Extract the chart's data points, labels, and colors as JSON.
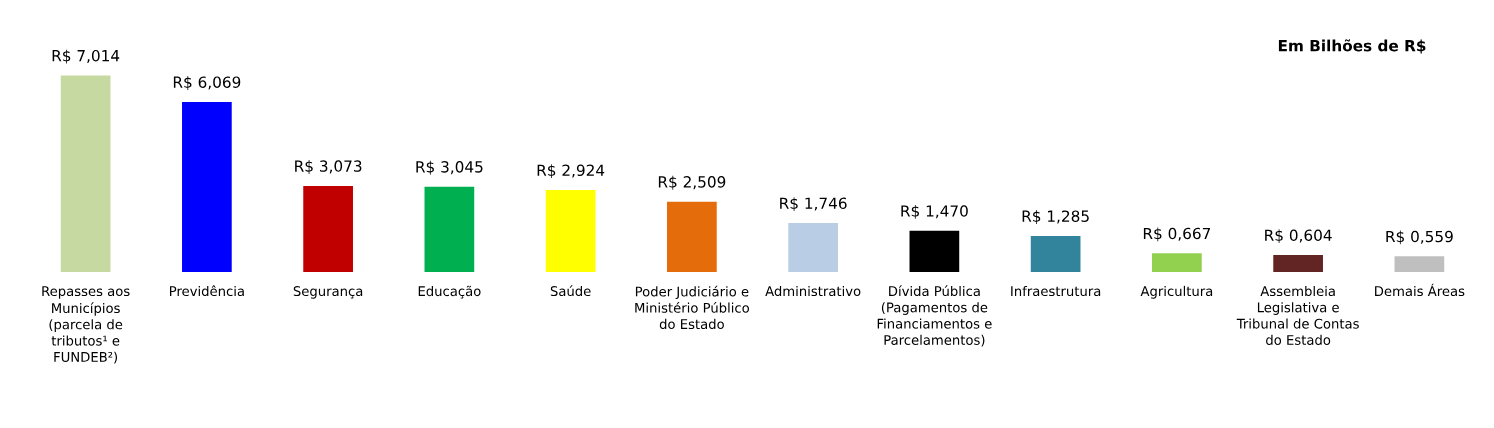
{
  "chart_data": {
    "type": "bar",
    "categories": [
      "Repasses aos\nMunicípios\n(parcela de\ntributos¹ e\nFUNDEB²)",
      "Previdência",
      "Segurança",
      "Educação",
      "Saúde",
      "Poder Judiciário e\nMinistério Público\ndo Estado",
      "Administrativo",
      "Dívida Pública\n(Pagamentos de\nFinanciamentos e\nParcelamentos)",
      "Infraestrutura",
      "Agricultura",
      "Assembleia\nLegislativa e\nTribunal de Contas\ndo Estado",
      "Demais Áreas"
    ],
    "values": [
      7.014,
      6.069,
      3.073,
      3.045,
      2.924,
      2.509,
      1.746,
      1.47,
      1.285,
      0.667,
      0.604,
      0.559
    ],
    "value_labels": [
      "R$ 7,014",
      "R$ 6,069",
      "R$ 3,073",
      "R$ 3,045",
      "R$ 2,924",
      "R$ 2,509",
      "R$ 1,746",
      "R$ 1,470",
      "R$ 1,285",
      "R$ 0,667",
      "R$ 0,604",
      "R$ 0,559"
    ],
    "colors": [
      "#c6d9a0",
      "#0000ff",
      "#c00000",
      "#00b050",
      "#ffff00",
      "#e46c0a",
      "#b9cde5",
      "#000000",
      "#31849b",
      "#92d050",
      "#632523",
      "#bfbfbf"
    ],
    "annotations": [
      "Em Bilhões de R$"
    ],
    "grid": false,
    "legend": false
  }
}
